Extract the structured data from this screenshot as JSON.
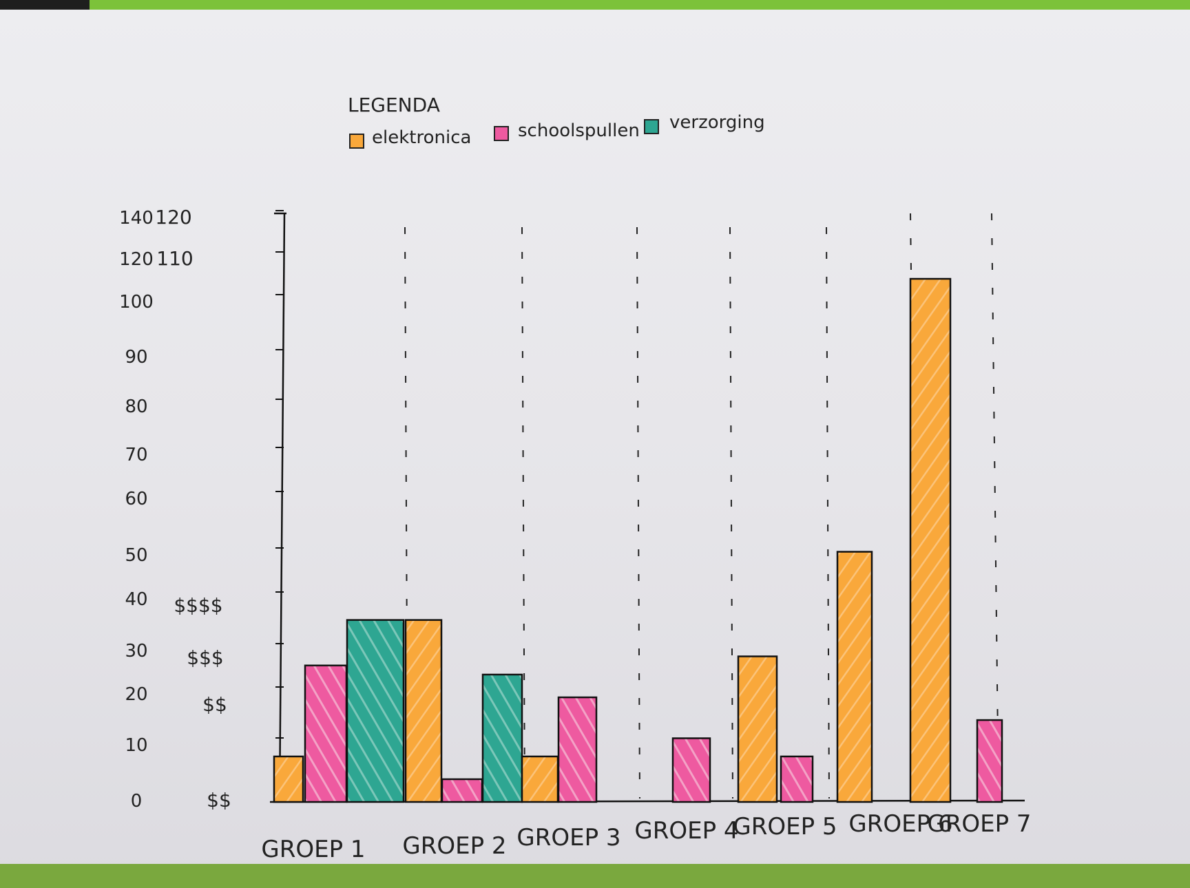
{
  "chart_data": {
    "type": "bar",
    "legend_title": "LEGENDA",
    "legend_position": "top",
    "categories": [
      "GROEP 1",
      "GROEP 2",
      "GROEP 3",
      "GROEP 4",
      "GROEP 5",
      "GROEP 6",
      "GROEP 7"
    ],
    "series": [
      {
        "name": "elektronica",
        "color": "#f9a83b",
        "values": [
          10,
          40,
          10,
          null,
          32,
          55,
          115
        ]
      },
      {
        "name": "schoolspullen",
        "color": "#ee5aa0",
        "values": [
          30,
          5,
          23,
          14,
          10,
          null,
          18
        ]
      },
      {
        "name": "verzorging",
        "color": "#2ea692",
        "values": [
          40,
          28,
          null,
          null,
          null,
          null,
          null
        ]
      }
    ],
    "y_ticks": [
      "0",
      "10",
      "20",
      "30",
      "40",
      "50",
      "60",
      "70",
      "80",
      "90",
      "100",
      "120",
      "140"
    ],
    "y_ticks_secondary": [
      "$$",
      "$$",
      "$$$",
      "$$$$",
      "110",
      "120"
    ],
    "ylim": [
      0,
      140
    ],
    "grid": "dashed vertical separators between groups"
  }
}
